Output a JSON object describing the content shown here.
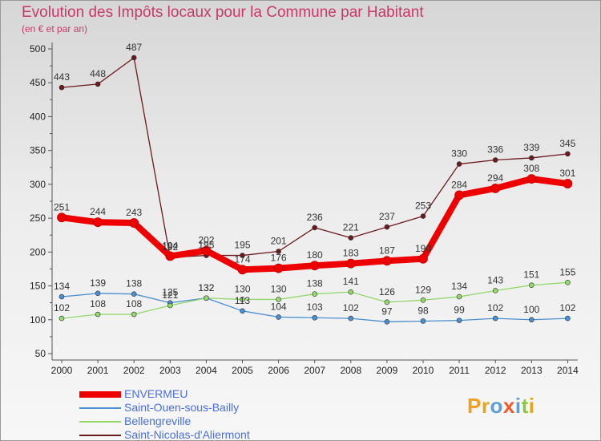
{
  "title": "Evolution des Impôts locaux pour la Commune par Habitant",
  "subtitle": "(en € et par an)",
  "logo_text": "Proxiti",
  "chart_data": {
    "type": "line",
    "x": [
      "2000",
      "2001",
      "2002",
      "2003",
      "2004",
      "2005",
      "2006",
      "2007",
      "2008",
      "2009",
      "2010",
      "2011",
      "2012",
      "2013",
      "2014"
    ],
    "ylim": [
      50,
      500
    ],
    "yticks": [
      50,
      100,
      150,
      200,
      250,
      300,
      350,
      400,
      450,
      500
    ],
    "grid": false,
    "legend_position": "bottom-left",
    "series": [
      {
        "name": "Saint-Nicolas-d'Aliermont",
        "color": "#6b1a1e",
        "values": [
          443,
          448,
          487,
          192,
          195,
          195,
          201,
          236,
          221,
          237,
          253,
          330,
          336,
          339,
          345
        ]
      },
      {
        "name": "Saint-Ouen-sous-Bailly",
        "color": "#4a8fcf",
        "values": [
          134,
          139,
          138,
          125,
          132,
          113,
          104,
          103,
          102,
          97,
          98,
          99,
          102,
          100,
          102
        ]
      },
      {
        "name": "Bellengreville",
        "color": "#92d86a",
        "values": [
          102,
          108,
          108,
          121,
          132,
          130,
          130,
          138,
          141,
          126,
          129,
          134,
          143,
          151,
          155
        ]
      },
      {
        "name": "ENVERMEU",
        "color": "#ee0000",
        "values": [
          251,
          244,
          243,
          194,
          202,
          174,
          176,
          180,
          183,
          187,
          190,
          284,
          294,
          308,
          301
        ]
      }
    ],
    "legend_order": [
      "ENVERMEU",
      "Saint-Ouen-sous-Bailly",
      "Bellengreville",
      "Saint-Nicolas-d'Aliermont"
    ]
  }
}
